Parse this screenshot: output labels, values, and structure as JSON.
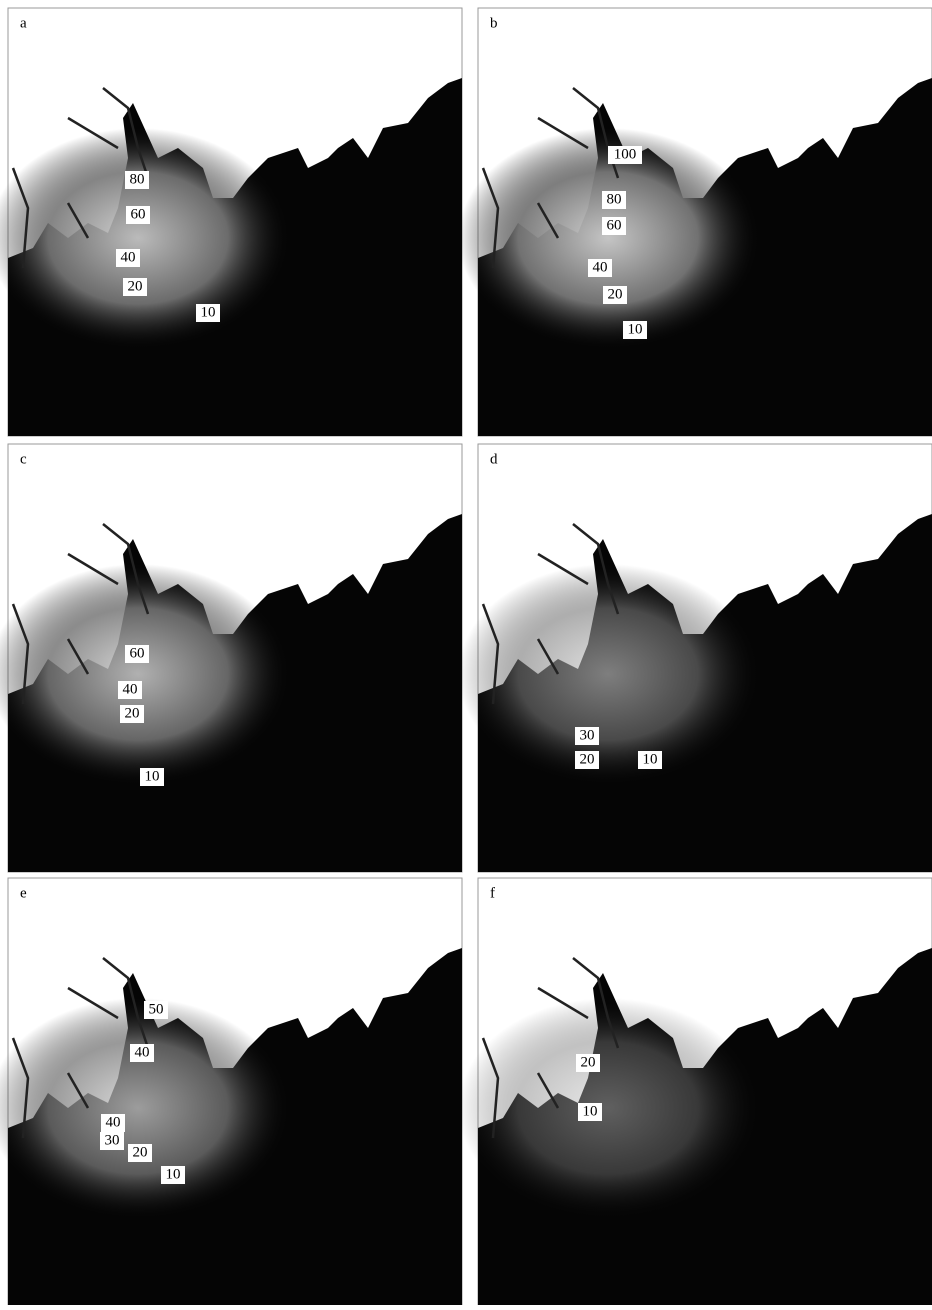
{
  "panels": [
    {
      "label": "a",
      "contours": [
        80,
        60,
        40,
        20,
        10
      ]
    },
    {
      "label": "b",
      "contours": [
        100,
        80,
        60,
        40,
        20,
        10
      ]
    },
    {
      "label": "c",
      "contours": [
        60,
        40,
        20,
        10
      ]
    },
    {
      "label": "d",
      "contours": [
        30,
        20,
        10
      ]
    },
    {
      "label": "e",
      "contours": [
        50,
        40,
        40,
        30,
        20,
        10
      ]
    },
    {
      "label": "f",
      "contours": [
        20,
        10
      ]
    }
  ]
}
